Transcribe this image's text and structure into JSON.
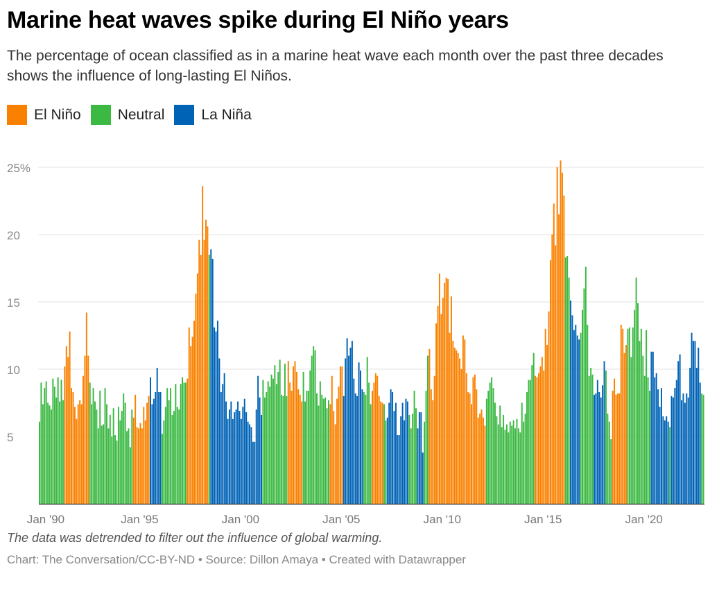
{
  "title": "Marine heat waves spike during El Niño years",
  "subtitle": "The percentage of ocean classified as in a marine heat wave each month over the past three decades shows the influence of long-lasting El Niños.",
  "legend": [
    {
      "label": "El Niño",
      "color": "#fa8100"
    },
    {
      "label": "Neutral",
      "color": "#3cb943"
    },
    {
      "label": "La Niña",
      "color": "#0063b6"
    }
  ],
  "note": "The data was detrended to filter out the influence of global warming.",
  "credit": "Chart: The Conversation/CC-BY-ND • Source: Dillon Amaya • Created with Datawrapper",
  "chart_data": {
    "type": "bar",
    "title": "",
    "xlabel": "",
    "ylabel": "",
    "start_month": "1990-01",
    "ylim": [
      0,
      25.5
    ],
    "grid": true,
    "y_ticks": [
      {
        "value": 5,
        "label": "5"
      },
      {
        "value": 10,
        "label": "10"
      },
      {
        "value": 15,
        "label": "15"
      },
      {
        "value": 20,
        "label": "20"
      },
      {
        "value": 25,
        "label": "25%"
      }
    ],
    "x_ticks": [
      {
        "month": "1990-01",
        "label": "Jan '90"
      },
      {
        "month": "1995-01",
        "label": "Jan '95"
      },
      {
        "month": "2000-01",
        "label": "Jan '00"
      },
      {
        "month": "2005-01",
        "label": "Jan '05"
      },
      {
        "month": "2010-01",
        "label": "Jan '10"
      },
      {
        "month": "2015-01",
        "label": "Jan '15"
      },
      {
        "month": "2020-01",
        "label": "Jan '20"
      }
    ],
    "segments": [
      {
        "phase": "Neutral",
        "values": [
          6.1,
          9.0,
          7.4,
          8.6,
          9.1,
          7.5,
          7.3,
          7.0,
          9.3,
          8.7,
          7.9,
          9.4,
          7.6,
          9.2,
          7.7
        ]
      },
      {
        "phase": "El Niño",
        "values": [
          10.2,
          11.7,
          10.9,
          12.8,
          8.6,
          8.3,
          7.2,
          6.3,
          7.4,
          7.7,
          7.4,
          9.5,
          11.0,
          14.2,
          11.0
        ]
      },
      {
        "phase": "Neutral",
        "values": [
          9.0,
          7.4,
          8.6,
          7.6,
          7.0,
          5.6,
          8.4,
          5.8,
          5.9,
          8.6,
          7.4,
          5.6,
          6.6,
          5.0,
          7.1,
          5.1,
          4.7,
          7.2,
          6.2,
          6.9,
          8.2,
          7.5,
          5.4,
          5.6,
          4.2,
          7.0
        ]
      },
      {
        "phase": "El Niño",
        "values": [
          6.4,
          8.1,
          5.7,
          5.6,
          6.0,
          5.6,
          7.2,
          6.2,
          7.5,
          8.0
        ]
      },
      {
        "phase": "La Niña",
        "values": [
          9.4,
          7.4,
          7.8,
          8.3,
          10.1,
          8.3,
          8.3
        ]
      },
      {
        "phase": "Neutral",
        "values": [
          5.2,
          6.2,
          7.2,
          8.6,
          7.7,
          8.6,
          6.6,
          6.9,
          8.9,
          7.2,
          7.0,
          8.9,
          9.4,
          9.0,
          9.0
        ]
      },
      {
        "phase": "El Niño",
        "values": [
          9.3,
          13.1,
          11.7,
          12.4,
          13.6,
          15.6,
          17.1,
          19.6,
          18.5,
          23.6,
          19.6,
          21.1,
          20.6
        ]
      },
      {
        "phase": "Neutral",
        "values": [
          18.5
        ]
      },
      {
        "phase": "La Niña",
        "values": [
          18.9,
          18.2,
          13.1,
          12.8,
          13.6,
          10.8,
          8.3,
          8.9,
          9.7,
          7.6,
          6.3,
          7.0,
          7.6,
          6.3,
          6.8,
          7.0,
          7.6,
          6.9,
          6.3,
          7.2,
          7.8,
          6.8,
          6.1,
          5.9,
          5.7,
          4.6,
          4.6,
          7.0,
          9.5,
          7.9,
          6.6
        ]
      },
      {
        "phase": "Neutral",
        "values": [
          9.2,
          7.9,
          8.3,
          9.1,
          8.7,
          9.6,
          9.3,
          10.3,
          8.9,
          9.8,
          10.7,
          8.1,
          8.0,
          10.4,
          8.0
        ]
      },
      {
        "phase": "El Niño",
        "values": [
          10.6,
          9.0,
          8.4,
          10.2,
          10.6,
          9.8,
          8.5,
          8.1,
          7.6
        ]
      },
      {
        "phase": "Neutral",
        "values": [
          9.8,
          7.6,
          8.4,
          8.4,
          9.9,
          11.0,
          11.7,
          11.4,
          8.2,
          7.3,
          9.1,
          8.1,
          7.8,
          7.9,
          7.1,
          7.7
        ]
      },
      {
        "phase": "El Niño",
        "values": [
          7.4,
          9.5,
          6.9,
          5.9,
          7.8,
          8.7,
          10.2,
          10.2
        ]
      },
      {
        "phase": "La Niña",
        "values": [
          8.0,
          10.8,
          12.3,
          11.0,
          11.6,
          12.1,
          9.3,
          8.2,
          8.0,
          10.5,
          9.9,
          8.5
        ]
      },
      {
        "phase": "Neutral",
        "values": [
          8.3,
          8.1,
          10.9,
          9.0,
          7.4
        ]
      },
      {
        "phase": "El Niño",
        "values": [
          8.4,
          9.0,
          9.7,
          9.5,
          8.0,
          7.6,
          7.5
        ]
      },
      {
        "phase": "Neutral",
        "values": [
          7.4,
          6.2
        ]
      },
      {
        "phase": "La Niña",
        "values": [
          6.4,
          7.5,
          8.5,
          8.3,
          6.9,
          7.5,
          5.1,
          5.1,
          6.5,
          7.5,
          6.2,
          7.8,
          7.6
        ]
      },
      {
        "phase": "Neutral",
        "values": [
          6.6,
          5.6,
          6.7,
          8.4,
          7.1
        ]
      },
      {
        "phase": "La Niña",
        "values": [
          5.6,
          6.8,
          6.8,
          3.8
        ]
      },
      {
        "phase": "Neutral",
        "values": [
          6.1,
          8.4,
          11.0
        ]
      },
      {
        "phase": "El Niño",
        "values": [
          11.5,
          8.5,
          7.7,
          9.5,
          13.4,
          14.7,
          17.1,
          14.1,
          15.3,
          16.4,
          16.8,
          16.7,
          12.7,
          15.4,
          12.1,
          11.6,
          11.4,
          11.2,
          10.8,
          10.0,
          12.5,
          12.2,
          9.7,
          8.3,
          8.2,
          7.4,
          9.4,
          9.6,
          8.5,
          6.4,
          6.7,
          7.0,
          6.4,
          5.8
        ]
      },
      {
        "phase": "Neutral",
        "values": [
          7.8,
          8.4,
          9.0,
          9.4,
          8.6,
          7.5,
          6.5,
          5.9,
          7.3,
          5.7,
          6.6,
          5.5,
          5.9,
          5.3,
          6.1,
          5.8,
          6.2,
          5.6,
          6.3,
          5.6,
          5.3,
          7.5,
          6.1,
          6.7,
          8.3,
          9.2,
          9.2,
          10.3,
          11.2
        ]
      },
      {
        "phase": "El Niño",
        "values": [
          9.5,
          9.4,
          9.7,
          10.2,
          10.9,
          9.9,
          13.0,
          11.8,
          14.3,
          18.1,
          20.0,
          22.3,
          19.2,
          25.0,
          21.5,
          25.5,
          24.6,
          22.9
        ]
      },
      {
        "phase": "Neutral",
        "values": [
          18.3,
          18.4,
          16.8
        ]
      },
      {
        "phase": "La Niña",
        "values": [
          15.1,
          14.0,
          12.9,
          13.3,
          12.5,
          12.2
        ]
      },
      {
        "phase": "Neutral",
        "values": [
          12.7,
          14.4,
          16.0,
          17.6,
          13.3,
          9.5,
          10.1,
          9.6
        ]
      },
      {
        "phase": "La Niña",
        "values": [
          8.1,
          8.2,
          9.2,
          8.3,
          7.9,
          8.8,
          10.6
        ]
      },
      {
        "phase": "Neutral",
        "values": [
          9.9,
          6.7,
          6.1,
          4.8
        ]
      },
      {
        "phase": "El Niño",
        "values": [
          8.4,
          9.3,
          8.1,
          8.2,
          8.2,
          13.3,
          13.0,
          11.2,
          11.8
        ]
      },
      {
        "phase": "Neutral",
        "values": [
          13.0,
          13.1,
          10.9,
          13.1,
          14.4,
          16.8,
          14.9,
          12.1,
          13.0,
          11.0,
          9.5,
          12.9,
          9.4,
          8.4
        ]
      },
      {
        "phase": "La Niña",
        "values": [
          11.3,
          11.3,
          9.4,
          9.7,
          8.5,
          7.2,
          8.6,
          6.5,
          6.2,
          6.5,
          6.1
        ]
      },
      {
        "phase": "Neutral",
        "values": [
          5.7
        ]
      },
      {
        "phase": "La Niña",
        "values": [
          8.0,
          7.9,
          8.6,
          9.2,
          10.6,
          11.1,
          7.7,
          8.2,
          7.5,
          8.2,
          7.9,
          10.1,
          12.7,
          12.1,
          12.1,
          10.1,
          11.6,
          9.0
        ]
      },
      {
        "phase": "Neutral",
        "values": [
          8.2,
          8.1
        ]
      }
    ]
  }
}
